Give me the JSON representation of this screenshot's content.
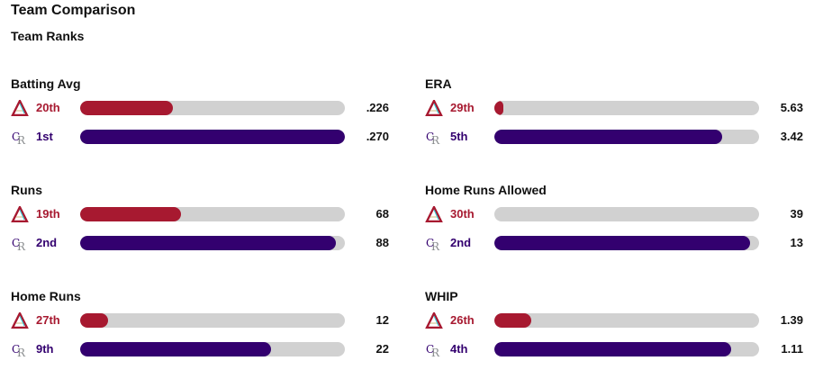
{
  "header": {
    "title": "Team Comparison",
    "section": "Team Ranks"
  },
  "teams": [
    {
      "id": "diamondbacks",
      "icon": "arizona-diamondbacks-logo-icon",
      "color": "#a71930"
    },
    {
      "id": "rockies",
      "icon": "colorado-rockies-logo-icon",
      "color": "#33006f"
    }
  ],
  "stats": [
    {
      "label": "Batting Avg",
      "column": "left",
      "rows": [
        {
          "team": "diamondbacks",
          "rank": "20th",
          "value": ".226",
          "fill": 0.35
        },
        {
          "team": "rockies",
          "rank": "1st",
          "value": ".270",
          "fill": 1.0
        }
      ]
    },
    {
      "label": "ERA",
      "column": "right",
      "rows": [
        {
          "team": "diamondbacks",
          "rank": "29th",
          "value": "5.63",
          "fill": 0.035
        },
        {
          "team": "rockies",
          "rank": "5th",
          "value": "3.42",
          "fill": 0.86
        }
      ]
    },
    {
      "label": "Runs",
      "column": "left",
      "rows": [
        {
          "team": "diamondbacks",
          "rank": "19th",
          "value": "68",
          "fill": 0.38
        },
        {
          "team": "rockies",
          "rank": "2nd",
          "value": "88",
          "fill": 0.965
        }
      ]
    },
    {
      "label": "Home Runs Allowed",
      "column": "right",
      "rows": [
        {
          "team": "diamondbacks",
          "rank": "30th",
          "value": "39",
          "fill": 0.0
        },
        {
          "team": "rockies",
          "rank": "2nd",
          "value": "13",
          "fill": 0.965
        }
      ]
    },
    {
      "label": "Home Runs",
      "column": "left",
      "rows": [
        {
          "team": "diamondbacks",
          "rank": "27th",
          "value": "12",
          "fill": 0.105
        },
        {
          "team": "rockies",
          "rank": "9th",
          "value": "22",
          "fill": 0.72
        }
      ]
    },
    {
      "label": "WHIP",
      "column": "right",
      "rows": [
        {
          "team": "diamondbacks",
          "rank": "26th",
          "value": "1.39",
          "fill": 0.14
        },
        {
          "team": "rockies",
          "rank": "4th",
          "value": "1.11",
          "fill": 0.895
        }
      ]
    }
  ]
}
